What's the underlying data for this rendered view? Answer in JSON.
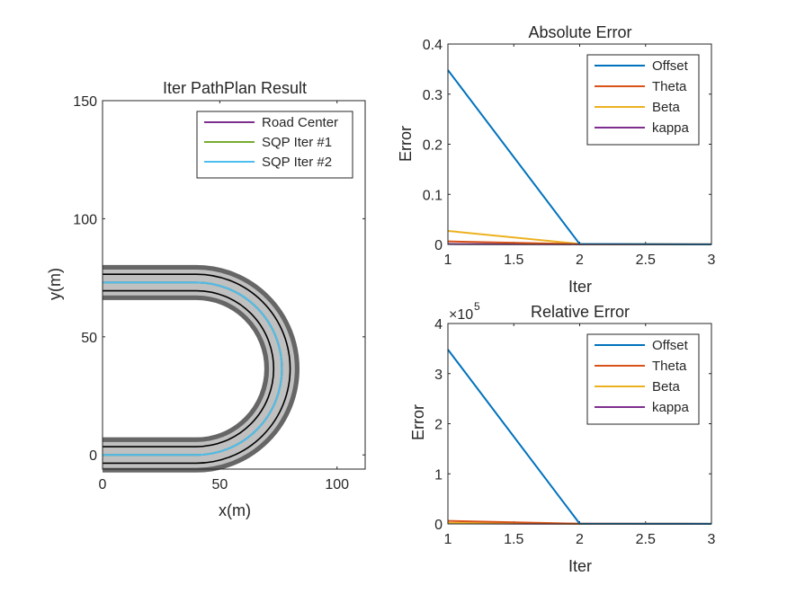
{
  "chart_data": [
    {
      "type": "line",
      "title": "Iter PathPlan Result",
      "xlabel": "x(m)",
      "ylabel": "y(m)",
      "xlim": [
        0,
        112
      ],
      "ylim": [
        -6,
        150
      ],
      "xticks": [
        0,
        50,
        100
      ],
      "yticks": [
        0,
        50,
        100,
        150
      ],
      "legend_position": "top-right",
      "road": {
        "straight_end_x": 40,
        "turn_center": [
          40,
          36.5
        ],
        "center_radius": 36.5,
        "edge_half_width": 3.5,
        "outer_band_half_width": 7.5,
        "inner_band_half_width": 5.5
      },
      "series": [
        {
          "name": "Road Center",
          "color": "#7E2F8E",
          "path": "road-center"
        },
        {
          "name": "SQP Iter #1",
          "color": "#77AC30",
          "path": "road-center"
        },
        {
          "name": "SQP Iter #2",
          "color": "#4DBEEE",
          "path": "road-center"
        }
      ]
    },
    {
      "type": "line",
      "title": "Absolute Error",
      "xlabel": "Iter",
      "ylabel": "Error",
      "xlim": [
        1,
        3
      ],
      "ylim": [
        0,
        0.4
      ],
      "xticks": [
        1,
        1.5,
        2,
        2.5,
        3
      ],
      "yticks": [
        0,
        0.1,
        0.2,
        0.3,
        0.4
      ],
      "legend_position": "top-right",
      "x": [
        1,
        2,
        3
      ],
      "series": [
        {
          "name": "Offset",
          "color": "#0072BD",
          "values": [
            0.348,
            0.0008,
            0.0002
          ]
        },
        {
          "name": "Theta",
          "color": "#D95319",
          "values": [
            0.006,
            0.0005,
            0.0002
          ]
        },
        {
          "name": "Beta",
          "color": "#EDB120",
          "values": [
            0.027,
            0.0009,
            0.0002
          ]
        },
        {
          "name": "kappa",
          "color": "#7E2F8E",
          "values": [
            0.0008,
            0.0003,
            0.0001
          ]
        }
      ]
    },
    {
      "type": "line",
      "title": "Relative Error",
      "xlabel": "Iter",
      "ylabel": "Error",
      "scale_exponent": "5",
      "xlim": [
        1,
        3
      ],
      "ylim": [
        0,
        4
      ],
      "xticks": [
        1,
        1.5,
        2,
        2.5,
        3
      ],
      "yticks": [
        0,
        1,
        2,
        3,
        4
      ],
      "legend_position": "top-right",
      "x": [
        1,
        2,
        3
      ],
      "series": [
        {
          "name": "Offset",
          "color": "#0072BD",
          "values": [
            3.48,
            0.005,
            0.002
          ]
        },
        {
          "name": "Theta",
          "color": "#D95319",
          "values": [
            0.06,
            0.004,
            0.002
          ]
        },
        {
          "name": "Beta",
          "color": "#EDB120",
          "values": [
            0.02,
            0.003,
            0.001
          ]
        },
        {
          "name": "kappa",
          "color": "#7E2F8E",
          "values": [
            0.01,
            0.002,
            0.001
          ]
        }
      ]
    }
  ]
}
